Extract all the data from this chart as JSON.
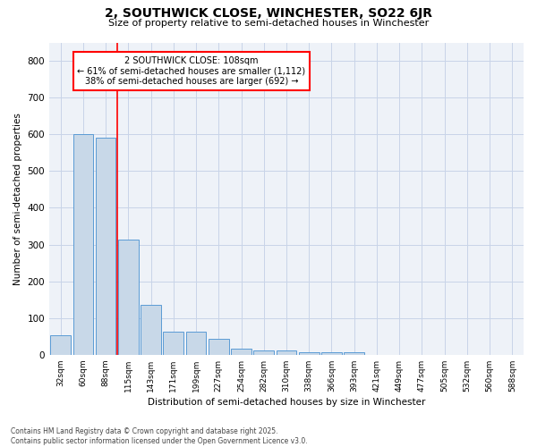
{
  "title": "2, SOUTHWICK CLOSE, WINCHESTER, SO22 6JR",
  "subtitle": "Size of property relative to semi-detached houses in Winchester",
  "xlabel": "Distribution of semi-detached houses by size in Winchester",
  "ylabel": "Number of semi-detached properties",
  "categories": [
    "32sqm",
    "60sqm",
    "88sqm",
    "115sqm",
    "143sqm",
    "171sqm",
    "199sqm",
    "227sqm",
    "254sqm",
    "282sqm",
    "310sqm",
    "338sqm",
    "366sqm",
    "393sqm",
    "421sqm",
    "449sqm",
    "477sqm",
    "505sqm",
    "532sqm",
    "560sqm",
    "588sqm"
  ],
  "values": [
    52,
    600,
    590,
    313,
    137,
    62,
    62,
    43,
    17,
    11,
    11,
    6,
    6,
    6,
    0,
    0,
    0,
    0,
    0,
    0,
    0
  ],
  "bar_color": "#c8d8e8",
  "bar_edge_color": "#5b9bd5",
  "grid_color": "#c8d4e8",
  "background_color": "#eef2f8",
  "annotation_title": "2 SOUTHWICK CLOSE: 108sqm",
  "annotation_line1": "← 61% of semi-detached houses are smaller (1,112)",
  "annotation_line2": "38% of semi-detached houses are larger (692) →",
  "footer": "Contains HM Land Registry data © Crown copyright and database right 2025.\nContains public sector information licensed under the Open Government Licence v3.0.",
  "ylim": [
    0,
    850
  ],
  "yticks": [
    0,
    100,
    200,
    300,
    400,
    500,
    600,
    700,
    800
  ],
  "property_line_x": 2.5
}
